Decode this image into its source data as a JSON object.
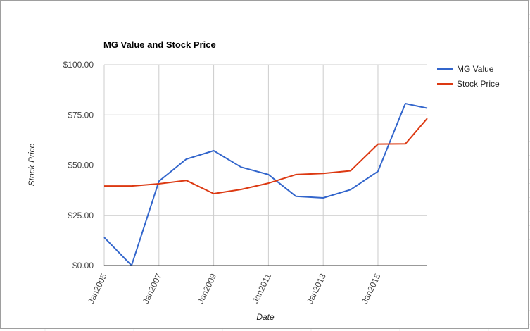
{
  "chart_data": {
    "type": "line",
    "title": "MG Value and Stock Price",
    "xlabel": "Date",
    "ylabel": "Stock Price",
    "x": [
      2005,
      2006,
      2007,
      2008,
      2009,
      2010,
      2011,
      2012,
      2013,
      2014,
      2015,
      2016,
      2016.8
    ],
    "x_ticks": [
      "Jan2005",
      "Jan2007",
      "Jan2009",
      "Jan2011",
      "Jan2013",
      "Jan2015"
    ],
    "y_ticks": [
      "$0.00",
      "$25.00",
      "$50.00",
      "$75.00",
      "$100.00"
    ],
    "ylim": [
      0,
      100
    ],
    "grid": true,
    "legend_position": "right",
    "series": [
      {
        "name": "MG Value",
        "color": "#3366cc",
        "values": [
          14.0,
          0.0,
          42.0,
          53.0,
          57.2,
          49.0,
          45.3,
          34.5,
          33.7,
          37.8,
          46.9,
          80.7,
          78.4
        ]
      },
      {
        "name": "Stock Price",
        "color": "#dc3912",
        "values": [
          39.6,
          39.6,
          40.7,
          42.4,
          35.8,
          37.9,
          41.0,
          45.3,
          45.9,
          47.2,
          60.5,
          60.6,
          73.3
        ]
      }
    ]
  }
}
